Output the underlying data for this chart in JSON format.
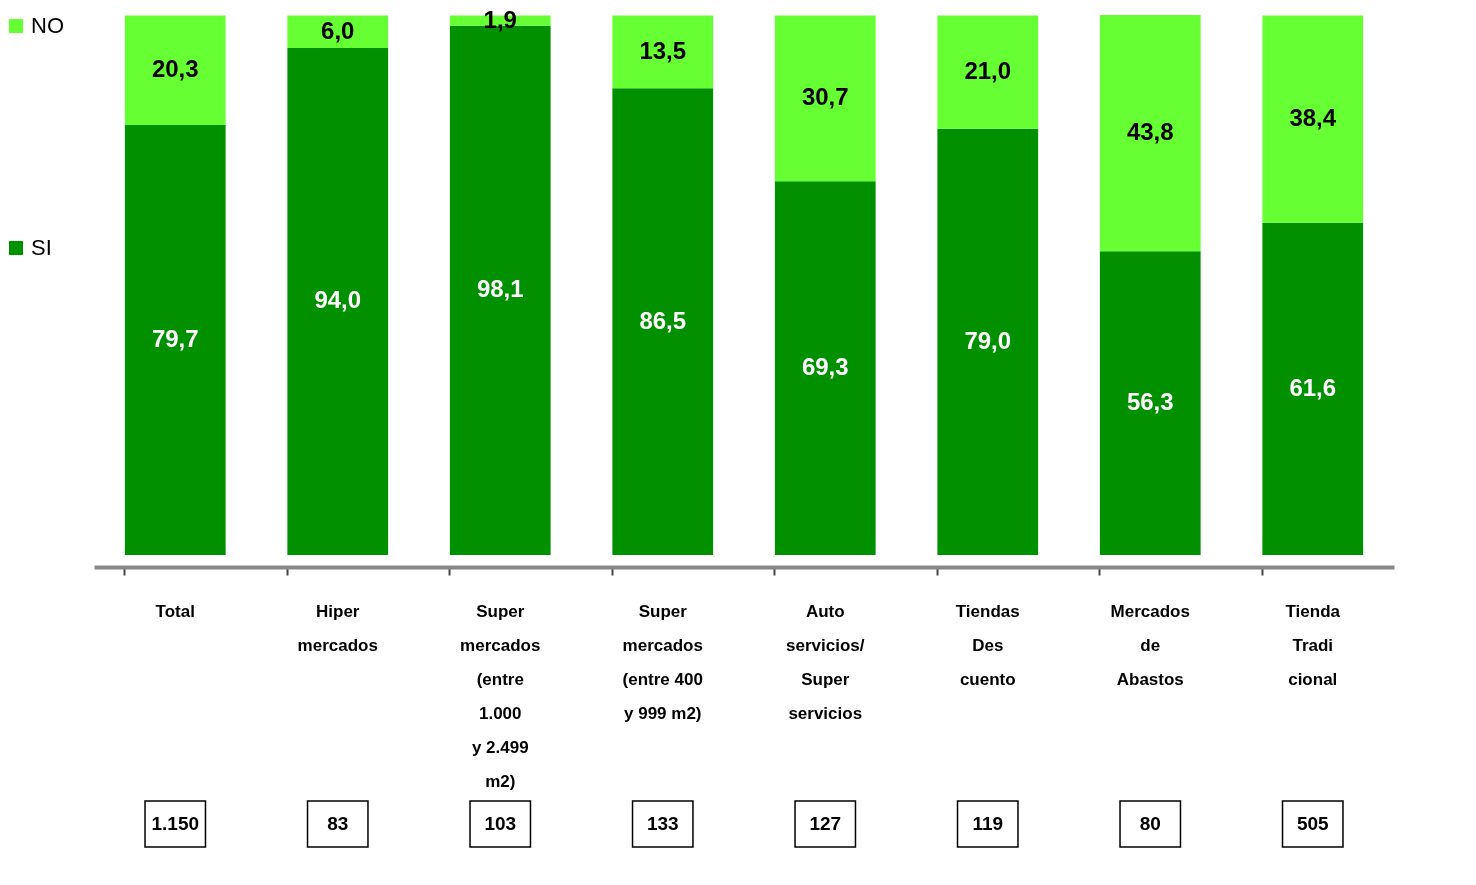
{
  "chart_data": {
    "type": "bar",
    "stacked": true,
    "legend": "left",
    "tick_labels": "x",
    "categories": [
      "Total",
      "Hiper\nmercados",
      "Super\nmercados\n(entre\n1.000\ny 2.499\nm2)",
      "Super\nmercados\n(entre 400\ny 999 m2)",
      "Auto\nservicios/\nSuper\nservicios",
      "Tiendas\nDes\ncuento",
      "Mercados\nde\nAbastos",
      "Tienda\nTradi\ncional"
    ],
    "series": [
      {
        "name": "SI",
        "color": "#009000",
        "values": [
          79.7,
          94.0,
          98.1,
          86.5,
          69.3,
          79.0,
          56.3,
          61.6
        ],
        "value_labels": [
          "79,7",
          "94,0",
          "98,1",
          "86,5",
          "69,3",
          "79,0",
          "56,3",
          "61,6"
        ]
      },
      {
        "name": "NO",
        "color": "#66ff33",
        "values": [
          20.3,
          6.0,
          1.9,
          13.5,
          30.7,
          21.0,
          43.8,
          38.4
        ],
        "value_labels": [
          "20,3",
          "6,0",
          "1,9",
          "13,5",
          "30,7",
          "21,0",
          "43,8",
          "38,4"
        ]
      }
    ],
    "annotations": [
      "1.150",
      "83",
      "103",
      "133",
      "127",
      "119",
      "80",
      "505"
    ]
  }
}
